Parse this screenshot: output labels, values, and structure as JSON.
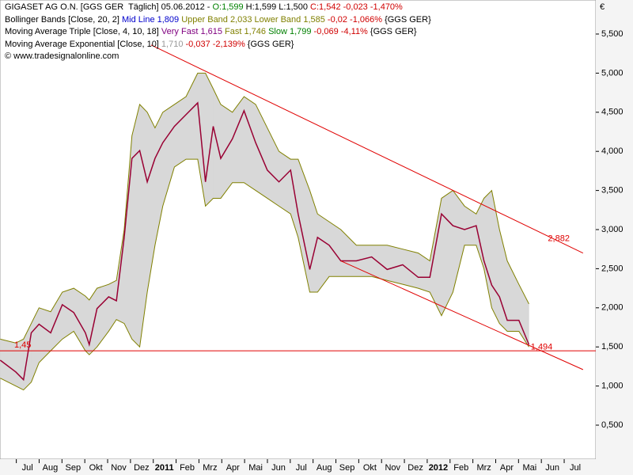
{
  "chart_data": {
    "type": "line",
    "header": [
      [
        {
          "text": "GIGASET AG O.N. [GGS GER  Täglich] 05.06.2012 - ",
          "color": "#000000"
        },
        {
          "text": "O:1,599",
          "color": "#008000"
        },
        {
          "text": " H:1,599 L:1,500 ",
          "color": "#000000"
        },
        {
          "text": "C:1,542 -0,023 -1,470%",
          "color": "#d00000"
        }
      ],
      [
        {
          "text": "Bollinger Bands [Close, 20, 2] ",
          "color": "#000000"
        },
        {
          "text": "Mid Line 1,809",
          "color": "#0000cc"
        },
        {
          "text": " Upper Band 2,033 Lower Band 1,585",
          "color": "#808000"
        },
        {
          "text": " -0,02 -1,066%",
          "color": "#d00000"
        },
        {
          "text": " {GGS GER}",
          "color": "#000000"
        }
      ],
      [
        {
          "text": "Moving Average Triple [Close, 4, 10, 18] ",
          "color": "#000000"
        },
        {
          "text": "Very Fast 1,615",
          "color": "#800080"
        },
        {
          "text": " Fast 1,746",
          "color": "#808000"
        },
        {
          "text": " Slow 1,799",
          "color": "#008000"
        },
        {
          "text": " -0,069 -4,11%",
          "color": "#d00000"
        },
        {
          "text": " {GGS GER}",
          "color": "#000000"
        }
      ],
      [
        {
          "text": "Moving Average Exponential [Close, 10] ",
          "color": "#000000"
        },
        {
          "text": "1,710",
          "color": "#999999"
        },
        {
          "text": " -0,037 -2,139%",
          "color": "#d00000"
        },
        {
          "text": " {GGS GER}",
          "color": "#000000"
        }
      ],
      [
        {
          "text": "© www.tradesignalonline.com",
          "color": "#000000"
        }
      ]
    ],
    "currency": "€",
    "x": [
      -1.19,
      -0.51,
      -0.17,
      0.17,
      0.51,
      1.02,
      1.53,
      2.03,
      2.54,
      2.71,
      3.05,
      3.56,
      3.9,
      4.24,
      4.58,
      4.92,
      5.25,
      5.59,
      5.93,
      6.44,
      6.95,
      7.46,
      7.8,
      8.14,
      8.47,
      8.98,
      9.49,
      10.0,
      10.51,
      11.02,
      11.53,
      11.86,
      12.37,
      12.71,
      13.22,
      13.73,
      14.41,
      15.08,
      15.76,
      16.44,
      17.12,
      17.63,
      18.14,
      18.64,
      19.15,
      19.66,
      20.0,
      20.34,
      20.68,
      21.02,
      21.53,
      21.97
    ],
    "series": [
      {
        "name": "Close",
        "color": "#990033",
        "values": [
          1.33,
          1.18,
          1.08,
          1.68,
          1.79,
          1.68,
          2.04,
          1.94,
          1.68,
          1.53,
          1.99,
          2.14,
          2.09,
          2.9,
          3.91,
          4.01,
          3.61,
          3.91,
          4.11,
          4.32,
          4.47,
          4.62,
          3.61,
          4.32,
          3.91,
          4.16,
          4.52,
          4.11,
          3.76,
          3.61,
          3.76,
          3.2,
          2.49,
          2.9,
          2.8,
          2.6,
          2.6,
          2.65,
          2.49,
          2.55,
          2.39,
          2.39,
          3.2,
          3.05,
          3.0,
          3.05,
          2.6,
          2.29,
          2.14,
          1.84,
          1.84,
          1.53
        ]
      },
      {
        "name": "Upper Band",
        "color": "#808000",
        "values": [
          1.6,
          1.55,
          1.6,
          1.8,
          2.0,
          1.95,
          2.2,
          2.25,
          2.15,
          2.1,
          2.25,
          2.3,
          2.35,
          3.0,
          4.2,
          4.6,
          4.5,
          4.3,
          4.5,
          4.6,
          4.7,
          5.0,
          5.0,
          4.8,
          4.6,
          4.5,
          4.7,
          4.6,
          4.3,
          4.0,
          3.9,
          3.9,
          3.5,
          3.2,
          3.1,
          3.0,
          2.8,
          2.8,
          2.8,
          2.75,
          2.7,
          2.6,
          3.4,
          3.5,
          3.3,
          3.2,
          3.4,
          3.5,
          3.0,
          2.6,
          2.3,
          2.05
        ]
      },
      {
        "name": "Lower Band",
        "color": "#808000",
        "values": [
          1.1,
          1.0,
          0.95,
          1.05,
          1.3,
          1.45,
          1.6,
          1.7,
          1.45,
          1.4,
          1.5,
          1.7,
          1.85,
          1.8,
          1.6,
          1.5,
          2.2,
          2.8,
          3.3,
          3.8,
          3.9,
          3.9,
          3.3,
          3.4,
          3.4,
          3.6,
          3.6,
          3.5,
          3.4,
          3.3,
          3.2,
          2.9,
          2.2,
          2.2,
          2.4,
          2.4,
          2.4,
          2.4,
          2.35,
          2.3,
          2.25,
          2.2,
          1.9,
          2.2,
          2.8,
          2.8,
          2.5,
          2.0,
          1.8,
          1.7,
          1.7,
          1.5
        ]
      }
    ],
    "trend_lines": [
      {
        "color": "#e00000",
        "x": [
          5.42,
          24.34
        ],
        "y": [
          5.36,
          2.7
        ]
      },
      {
        "color": "#e00000",
        "x": [
          13.73,
          24.34
        ],
        "y": [
          2.6,
          1.21
        ]
      }
    ],
    "hline": {
      "value": 1.45,
      "label": "1,45",
      "color": "#e00000"
    },
    "price_labels": [
      {
        "x": 22.8,
        "y": {
          "value": 2.882,
          "label": "2,882"
        }
      },
      {
        "x": 22.05,
        "y": {
          "value": 1.494,
          "label": "1,494"
        }
      }
    ],
    "xlim": [
      -1.2,
      24.9
    ],
    "ylim": [
      0.065,
      5.935
    ],
    "xticks": [
      {
        "value": 0,
        "label": "Jul"
      },
      {
        "value": 1,
        "label": "Aug"
      },
      {
        "value": 2,
        "label": "Sep"
      },
      {
        "value": 3,
        "label": "Okt"
      },
      {
        "value": 4,
        "label": "Nov"
      },
      {
        "value": 5,
        "label": "Dez"
      },
      {
        "value": 6,
        "label": "2011"
      },
      {
        "value": 7,
        "label": "Feb"
      },
      {
        "value": 8,
        "label": "Mrz"
      },
      {
        "value": 9,
        "label": "Apr"
      },
      {
        "value": 10,
        "label": "Mai"
      },
      {
        "value": 11,
        "label": "Jun"
      },
      {
        "value": 12,
        "label": "Jul"
      },
      {
        "value": 13,
        "label": "Aug"
      },
      {
        "value": 14,
        "label": "Sep"
      },
      {
        "value": 15,
        "label": "Okt"
      },
      {
        "value": 16,
        "label": "Nov"
      },
      {
        "value": 17,
        "label": "Dez"
      },
      {
        "value": 18,
        "label": "2012"
      },
      {
        "value": 19,
        "label": "Feb"
      },
      {
        "value": 20,
        "label": "Mrz"
      },
      {
        "value": 21,
        "label": "Apr"
      },
      {
        "value": 22,
        "label": "Mai"
      },
      {
        "value": 23,
        "label": "Jun"
      },
      {
        "value": 24,
        "label": "Jul"
      }
    ],
    "yticks": [
      {
        "value": 0.5,
        "label": "0,500"
      },
      {
        "value": 1,
        "label": "1,000"
      },
      {
        "value": 1.5,
        "label": "1,500"
      },
      {
        "value": 2,
        "label": "2,000"
      },
      {
        "value": 2.5,
        "label": "2,500"
      },
      {
        "value": 3,
        "label": "3,000"
      },
      {
        "value": 3.5,
        "label": "3,500"
      },
      {
        "value": 4,
        "label": "4,000"
      },
      {
        "value": 4.5,
        "label": "4,500"
      },
      {
        "value": 5,
        "label": "5,000"
      },
      {
        "value": 5.5,
        "label": "5,500"
      }
    ]
  }
}
